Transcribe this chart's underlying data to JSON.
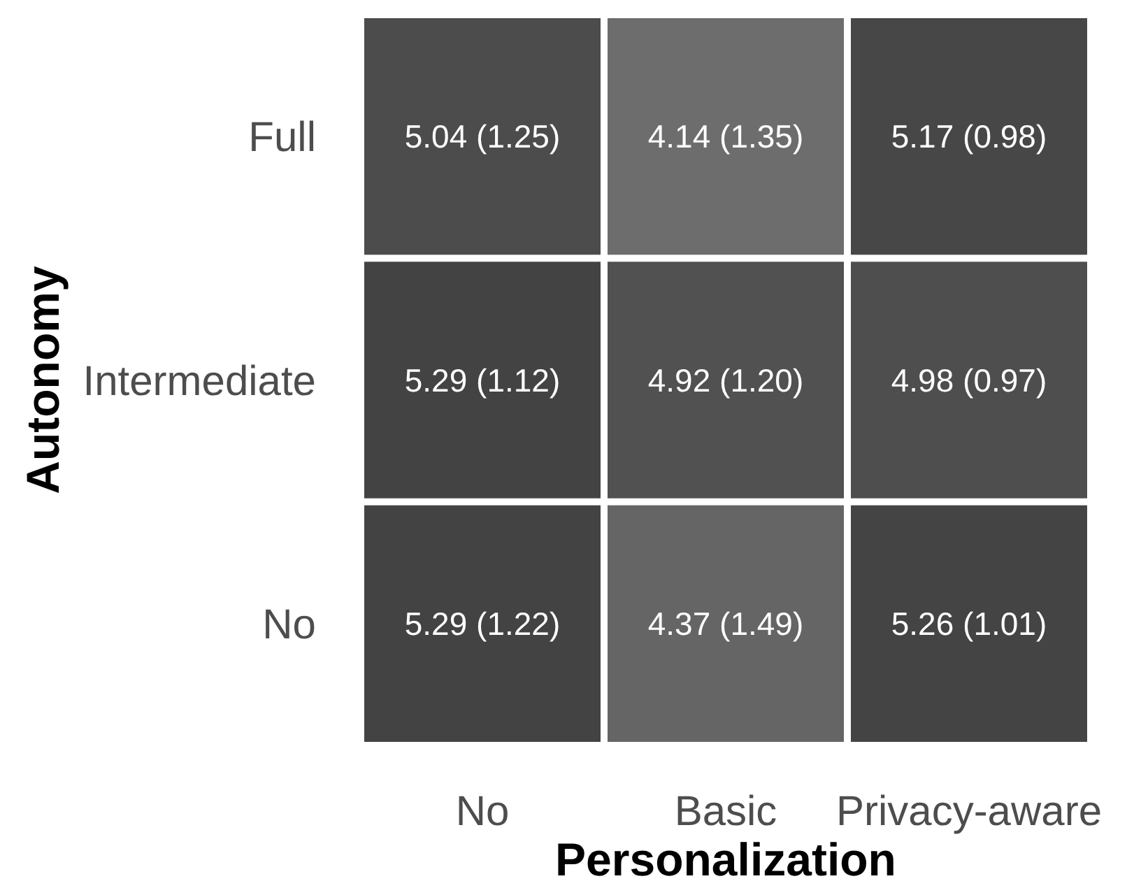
{
  "chart_data": {
    "type": "heatmap",
    "xlabel": "Personalization",
    "ylabel": "Autonomy",
    "categories": [
      "No",
      "Basic",
      "Privacy-aware"
    ],
    "y_categories": [
      "Full",
      "Intermediate",
      "No"
    ],
    "cells": [
      [
        5.04,
        4.14,
        5.17
      ],
      [
        5.29,
        4.92,
        4.98
      ],
      [
        5.29,
        4.37,
        5.26
      ]
    ],
    "data_labels": true,
    "annotations": [
      "(1.25)",
      "(1.35)",
      "(0.98)",
      "(1.12)",
      "(1.20)",
      "(0.97)",
      "(1.22)",
      "(1.49)",
      "(1.01)"
    ]
  }
}
